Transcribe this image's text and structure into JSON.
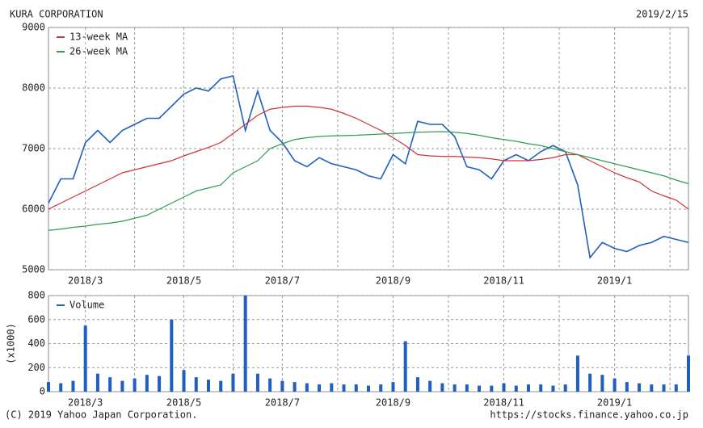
{
  "chart_data": [
    {
      "type": "line",
      "title": "KURA CORPORATION",
      "subtitle": "2019/2/15",
      "categories": [
        null,
        null,
        null,
        "2018/3",
        null,
        null,
        null,
        null,
        null,
        null,
        null,
        "2018/5",
        null,
        null,
        null,
        null,
        null,
        null,
        null,
        "2018/7",
        null,
        null,
        null,
        null,
        null,
        null,
        null,
        null,
        "2018/9",
        null,
        null,
        null,
        null,
        null,
        null,
        null,
        null,
        "2018/11",
        null,
        null,
        null,
        null,
        null,
        null,
        null,
        null,
        "2019/1",
        null,
        null,
        null,
        null,
        null,
        null
      ],
      "series": [
        {
          "name": null,
          "color": "#1f5fbf",
          "values": [
            6100,
            6500,
            6500,
            7100,
            7300,
            7100,
            7300,
            7400,
            7500,
            7500,
            7700,
            7900,
            8000,
            7950,
            8150,
            8200,
            7300,
            7950,
            7300,
            7100,
            6800,
            6700,
            6850,
            6750,
            6700,
            6650,
            6550,
            6500,
            6900,
            6750,
            7450,
            7400,
            7400,
            7200,
            6700,
            6650,
            6500,
            6800,
            6900,
            6800,
            6950,
            7050,
            6950,
            6400,
            5200,
            5450,
            5350,
            5300,
            5400,
            5450,
            5550,
            5500,
            5450
          ]
        },
        {
          "name": "13-week MA",
          "color": "#cc3333",
          "values": [
            6000,
            6100,
            6200,
            6300,
            6400,
            6500,
            6600,
            6650,
            6700,
            6750,
            6800,
            6880,
            6950,
            7020,
            7100,
            7250,
            7400,
            7550,
            7650,
            7680,
            7700,
            7700,
            7680,
            7650,
            7580,
            7500,
            7400,
            7300,
            7180,
            7050,
            6900,
            6880,
            6870,
            6870,
            6860,
            6850,
            6830,
            6800,
            6800,
            6800,
            6820,
            6850,
            6900,
            6900,
            6800,
            6700,
            6600,
            6520,
            6450,
            6300,
            6220,
            6150,
            6000
          ]
        },
        {
          "name": "26-week MA",
          "color": "#2e9e4f",
          "values": [
            5650,
            5670,
            5700,
            5720,
            5750,
            5770,
            5800,
            5850,
            5900,
            6000,
            6100,
            6200,
            6300,
            6350,
            6400,
            6600,
            6700,
            6800,
            7000,
            7080,
            7150,
            7180,
            7200,
            7210,
            7215,
            7220,
            7230,
            7240,
            7250,
            7260,
            7270,
            7275,
            7280,
            7270,
            7250,
            7220,
            7180,
            7150,
            7120,
            7080,
            7050,
            7000,
            6950,
            6900,
            6850,
            6800,
            6750,
            6700,
            6650,
            6600,
            6550,
            6480,
            6420
          ]
        }
      ],
      "ylim": [
        5000,
        9000
      ],
      "yticks": [
        5000,
        6000,
        7000,
        8000,
        9000
      ],
      "grid": true
    },
    {
      "type": "bar",
      "ylabel": "(x1000)",
      "categories": [
        null,
        null,
        null,
        "2018/3",
        null,
        null,
        null,
        null,
        null,
        null,
        null,
        "2018/5",
        null,
        null,
        null,
        null,
        null,
        null,
        null,
        "2018/7",
        null,
        null,
        null,
        null,
        null,
        null,
        null,
        null,
        "2018/9",
        null,
        null,
        null,
        null,
        null,
        null,
        null,
        null,
        "2018/11",
        null,
        null,
        null,
        null,
        null,
        null,
        null,
        null,
        "2019/1",
        null,
        null,
        null,
        null,
        null,
        null
      ],
      "series": [
        {
          "name": "Volume",
          "color": "#1f5fbf",
          "values": [
            80,
            70,
            90,
            550,
            150,
            120,
            90,
            110,
            140,
            130,
            600,
            180,
            120,
            100,
            90,
            150,
            800,
            150,
            110,
            90,
            80,
            70,
            60,
            70,
            60,
            60,
            50,
            60,
            80,
            420,
            120,
            90,
            70,
            60,
            60,
            50,
            50,
            70,
            50,
            60,
            60,
            50,
            60,
            300,
            150,
            140,
            110,
            80,
            70,
            60,
            60,
            60,
            300
          ]
        }
      ],
      "ylim": [
        0,
        800
      ],
      "yticks": [
        0,
        200,
        400,
        600,
        800
      ],
      "grid": true
    }
  ],
  "footer": {
    "copyright": "(C) 2019 Yahoo Japan Corporation.",
    "url": "https://stocks.finance.yahoo.co.jp"
  }
}
